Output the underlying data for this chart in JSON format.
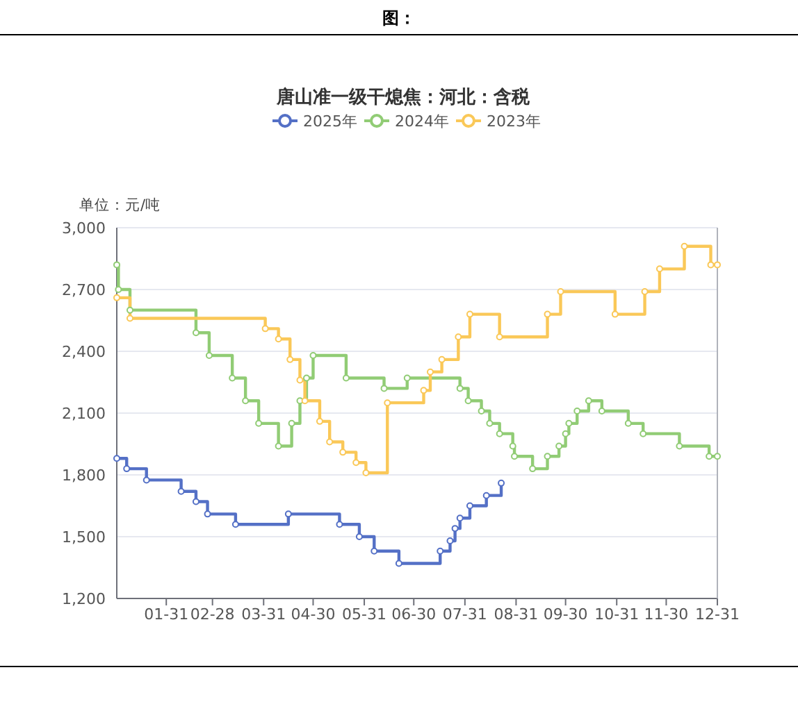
{
  "chart_data": {
    "type": "step",
    "title": "唐山准一级干熄焦：河北：含税",
    "ylabel": "单位：元/吨",
    "annotations": [
      "图："
    ],
    "xlim": [
      "--01-01",
      "--12-31"
    ],
    "xticks": [
      {
        "value": "--01-31",
        "label": "01-31"
      },
      {
        "value": "--02-28",
        "label": "02-28"
      },
      {
        "value": "--03-31",
        "label": "03-31"
      },
      {
        "value": "--04-30",
        "label": "04-30"
      },
      {
        "value": "--05-31",
        "label": "05-31"
      },
      {
        "value": "--06-30",
        "label": "06-30"
      },
      {
        "value": "--07-31",
        "label": "07-31"
      },
      {
        "value": "--08-31",
        "label": "08-31"
      },
      {
        "value": "--09-30",
        "label": "09-30"
      },
      {
        "value": "--10-31",
        "label": "10-31"
      },
      {
        "value": "--11-30",
        "label": "11-30"
      },
      {
        "value": "--12-31",
        "label": "12-31"
      }
    ],
    "ylim": [
      1200,
      3000
    ],
    "yticks": [
      {
        "value": 1200,
        "label": "1,200"
      },
      {
        "value": 1500,
        "label": "1,500"
      },
      {
        "value": 1800,
        "label": "1,800"
      },
      {
        "value": 2100,
        "label": "2,100"
      },
      {
        "value": 2400,
        "label": "2,400"
      },
      {
        "value": 2700,
        "label": "2,700"
      },
      {
        "value": 3000,
        "label": "3,000"
      }
    ],
    "grid": "y",
    "legend": "top",
    "marker": "circle",
    "line_style": "solid",
    "series": [
      {
        "name": "2025年",
        "color": "#5470c6",
        "x": [
          "--01-01",
          "--01-07",
          "--01-19",
          "--02-09",
          "--02-18",
          "--02-25",
          "--03-14",
          "--04-15",
          "--05-16",
          "--05-28",
          "--06-06",
          "--06-21",
          "--07-16",
          "--07-22",
          "--07-25",
          "--07-28",
          "--08-03",
          "--08-13",
          "--08-22"
        ],
        "values": [
          1880,
          1830,
          1775,
          1720,
          1670,
          1610,
          1560,
          1610,
          1560,
          1500,
          1430,
          1370,
          1430,
          1480,
          1540,
          1590,
          1650,
          1700,
          1760
        ]
      },
      {
        "name": "2024年",
        "color": "#91cc75",
        "x": [
          "--01-01",
          "--01-02",
          "--01-09",
          "--02-18",
          "--02-26",
          "--03-12",
          "--03-20",
          "--03-28",
          "--04-09",
          "--04-17",
          "--04-22",
          "--04-26",
          "--04-30",
          "--05-20",
          "--06-12",
          "--06-26",
          "--07-28",
          "--08-02",
          "--08-10",
          "--08-15",
          "--08-21",
          "--08-29",
          "--08-30",
          "--09-10",
          "--09-19",
          "--09-26",
          "--09-30",
          "--10-02",
          "--10-07",
          "--10-14",
          "--10-22",
          "--11-07",
          "--11-16",
          "--12-08",
          "--12-26",
          "--12-31"
        ],
        "values": [
          2820,
          2700,
          2600,
          2490,
          2380,
          2270,
          2160,
          2050,
          1940,
          2050,
          2160,
          2270,
          2380,
          2270,
          2220,
          2270,
          2220,
          2160,
          2110,
          2050,
          2000,
          1940,
          1890,
          1830,
          1890,
          1940,
          2000,
          2050,
          2110,
          2160,
          2110,
          2050,
          2000,
          1940,
          1890,
          1890
        ]
      },
      {
        "name": "2023年",
        "color": "#fac858",
        "x": [
          "--01-01",
          "--01-09",
          "--04-01",
          "--04-09",
          "--04-16",
          "--04-22",
          "--04-25",
          "--05-04",
          "--05-10",
          "--05-18",
          "--05-26",
          "--06-01",
          "--06-14",
          "--07-06",
          "--07-10",
          "--07-17",
          "--07-27",
          "--08-03",
          "--08-21",
          "--09-19",
          "--09-27",
          "--10-30",
          "--11-17",
          "--11-26",
          "--12-11",
          "--12-27",
          "--12-31"
        ],
        "values": [
          2660,
          2560,
          2510,
          2460,
          2360,
          2260,
          2160,
          2060,
          1960,
          1910,
          1860,
          1810,
          2150,
          2210,
          2300,
          2360,
          2470,
          2580,
          2470,
          2580,
          2690,
          2580,
          2690,
          2800,
          2910,
          2820,
          2820
        ]
      }
    ]
  }
}
